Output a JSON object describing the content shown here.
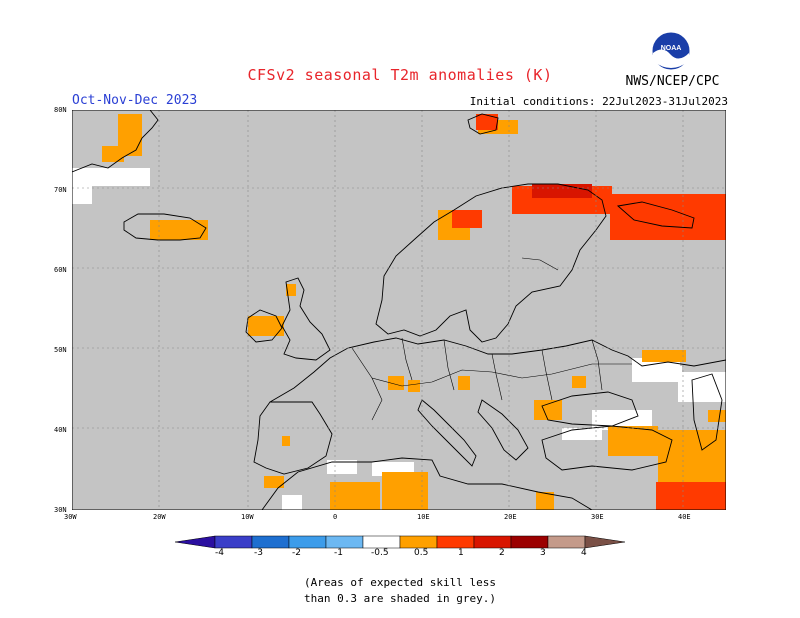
{
  "header": {
    "title": "CFSv2 seasonal T2m anomalies (K)",
    "season": "Oct-Nov-Dec 2023",
    "initial_conditions": "Initial conditions: 22Jul2023-31Jul2023",
    "agency": "NWS/NCEP/CPC",
    "logo_text": "NOAA"
  },
  "map": {
    "region": "Europe",
    "lat_labels": [
      "80N",
      "70N",
      "60N",
      "50N",
      "40N",
      "30N"
    ],
    "lon_labels": [
      "30W",
      "20W",
      "10W",
      "0",
      "10E",
      "20E",
      "30E",
      "40E"
    ],
    "grey_meaning": "skill less than 0.3"
  },
  "colorbar": {
    "labels": [
      "-4",
      "-3",
      "-2",
      "-1",
      "-0.5",
      "0.5",
      "1",
      "2",
      "3",
      "4"
    ],
    "colors": [
      "#2b0fa0",
      "#3a3ec8",
      "#1e6fd0",
      "#3c9cea",
      "#6cb8f2",
      "#ffffff",
      "#ffa000",
      "#ff3a00",
      "#d81500",
      "#9b0000",
      "#c49a8a",
      "#7a5046"
    ]
  },
  "footnote": {
    "line1": "(Areas of expected skill less",
    "line2": "than 0.3 are shaded in grey.)"
  }
}
